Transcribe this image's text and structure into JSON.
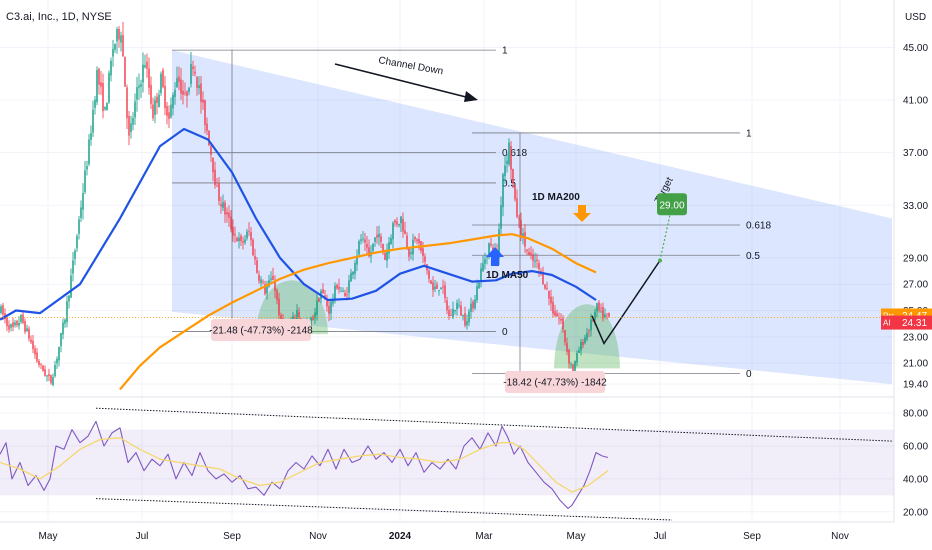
{
  "title": "C3.ai, Inc., 1D, NYSE",
  "currency": "USD",
  "chart_data": [
    {
      "type": "candlestick",
      "title": "C3.ai, Inc., 1D, NYSE",
      "ylabel": "USD",
      "ylim": [
        18.5,
        48.0
      ],
      "y_ticks": [
        "45.00",
        "41.00",
        "37.00",
        "33.00",
        "29.00",
        "27.00",
        "25.00",
        "23.00",
        "21.00",
        "19.40"
      ],
      "x_ticks": [
        "May",
        "Jul",
        "Sep",
        "Nov",
        "2024",
        "Mar",
        "May",
        "Jul",
        "Sep",
        "Nov"
      ],
      "price_labels": [
        {
          "tag": "Pre",
          "value": "24.47",
          "color": "#ff9800"
        },
        {
          "tag": "AI",
          "value": "24.31",
          "color": "#f23645"
        }
      ],
      "price_path": [
        [
          0,
          25
        ],
        [
          3,
          24
        ],
        [
          6,
          23.6
        ],
        [
          10,
          24.4
        ],
        [
          14,
          23
        ],
        [
          18,
          21.2
        ],
        [
          22,
          20.2
        ],
        [
          25,
          19.6
        ],
        [
          28,
          21.5
        ],
        [
          32,
          24.5
        ],
        [
          36,
          28.5
        ],
        [
          40,
          33
        ],
        [
          44,
          37.5
        ],
        [
          48,
          43
        ],
        [
          52,
          40
        ],
        [
          56,
          45
        ],
        [
          60,
          46.5
        ],
        [
          64,
          38
        ],
        [
          68,
          41.5
        ],
        [
          72,
          44
        ],
        [
          76,
          40
        ],
        [
          80,
          42.5
        ],
        [
          84,
          39.5
        ],
        [
          88,
          43
        ],
        [
          92,
          41
        ],
        [
          96,
          44
        ],
        [
          100,
          41
        ],
        [
          104,
          38
        ],
        [
          108,
          34
        ],
        [
          112,
          32.5
        ],
        [
          116,
          31
        ],
        [
          120,
          30
        ],
        [
          124,
          31
        ],
        [
          128,
          28
        ],
        [
          132,
          26.5
        ],
        [
          136,
          27.5
        ],
        [
          140,
          24
        ],
        [
          144,
          23.5
        ],
        [
          148,
          25
        ],
        [
          152,
          23.4
        ],
        [
          156,
          24.5
        ],
        [
          160,
          26.5
        ],
        [
          164,
          25
        ],
        [
          168,
          27
        ],
        [
          172,
          26
        ],
        [
          176,
          28.3
        ],
        [
          180,
          30.5
        ],
        [
          184,
          29
        ],
        [
          188,
          31
        ],
        [
          192,
          29
        ],
        [
          196,
          31.5
        ],
        [
          200,
          32
        ],
        [
          204,
          29.5
        ],
        [
          208,
          30.5
        ],
        [
          212,
          28.5
        ],
        [
          216,
          26.5
        ],
        [
          220,
          27
        ],
        [
          224,
          24.5
        ],
        [
          228,
          25.5
        ],
        [
          232,
          24.2
        ],
        [
          236,
          25.5
        ],
        [
          240,
          28
        ],
        [
          244,
          30
        ],
        [
          248,
          29
        ],
        [
          251,
          35.5
        ],
        [
          254,
          37.5
        ],
        [
          257,
          33
        ],
        [
          260,
          31
        ],
        [
          264,
          29
        ],
        [
          268,
          28.5
        ],
        [
          272,
          27
        ],
        [
          276,
          25
        ],
        [
          280,
          24.2
        ],
        [
          284,
          21.2
        ],
        [
          286,
          20.5
        ],
        [
          289,
          22
        ],
        [
          292,
          23
        ],
        [
          295,
          24
        ],
        [
          298,
          25.2
        ],
        [
          301,
          24.6
        ],
        [
          304,
          24.4
        ]
      ],
      "moving_averages": [
        {
          "name": "1D MA50",
          "color": "#1e53e5",
          "points": [
            [
              0,
              24.3
            ],
            [
              8,
              25
            ],
            [
              20,
              24.8
            ],
            [
              40,
              27
            ],
            [
              60,
              32
            ],
            [
              80,
              37.5
            ],
            [
              92,
              38.8
            ],
            [
              104,
              38
            ],
            [
              116,
              35.5
            ],
            [
              128,
              32
            ],
            [
              140,
              29
            ],
            [
              152,
              27
            ],
            [
              164,
              25.8
            ],
            [
              176,
              25.9
            ],
            [
              188,
              26.5
            ],
            [
              200,
              27.8
            ],
            [
              212,
              28.4
            ],
            [
              224,
              27.8
            ],
            [
              236,
              27.2
            ],
            [
              248,
              27.3
            ],
            [
              256,
              27.8
            ],
            [
              266,
              28
            ],
            [
              276,
              27.7
            ],
            [
              288,
              26.8
            ],
            [
              298,
              25.8
            ]
          ]
        },
        {
          "name": "1D MA200",
          "color": "#ff9800",
          "points": [
            [
              60,
              19
            ],
            [
              70,
              20.8
            ],
            [
              80,
              22.2
            ],
            [
              92,
              23.4
            ],
            [
              104,
              24.6
            ],
            [
              116,
              25.6
            ],
            [
              128,
              26.5
            ],
            [
              140,
              27.4
            ],
            [
              152,
              28.1
            ],
            [
              164,
              28.6
            ],
            [
              176,
              29
            ],
            [
              188,
              29.4
            ],
            [
              200,
              29.7
            ],
            [
              212,
              29.9
            ],
            [
              224,
              30.1
            ],
            [
              236,
              30.4
            ],
            [
              248,
              30.7
            ],
            [
              256,
              30.8
            ],
            [
              264,
              30.5
            ],
            [
              276,
              29.7
            ],
            [
              288,
              28.6
            ],
            [
              298,
              27.9
            ]
          ]
        }
      ],
      "channel": {
        "label": "Channel Down",
        "upper": [
          [
            86,
            44.8
          ],
          [
            446,
            32
          ]
        ],
        "lower": [
          [
            86,
            24.9
          ],
          [
            446,
            19.4
          ]
        ],
        "color": "#2962ff"
      },
      "fibonacci": [
        {
          "levels": [
            {
              "label": "1",
              "price": 44.8
            },
            {
              "label": "0.618",
              "price": 37
            },
            {
              "label": "0.5",
              "price": 34.7
            },
            {
              "label": "0",
              "price": 23.4
            }
          ],
          "x_range": [
            86,
            248
          ]
        },
        {
          "levels": [
            {
              "label": "1",
              "price": 38.5
            },
            {
              "label": "0.618",
              "price": 31.5
            },
            {
              "label": "0.5",
              "price": 29.2
            },
            {
              "label": "0",
              "price": 20.2
            }
          ],
          "x_range": [
            236,
            370
          ]
        }
      ],
      "measurements": [
        {
          "text": "-21.48 (-47.73%) -2148",
          "anchor": [
            115,
            24
          ]
        },
        {
          "text": "-18.42 (-47.73%) -1842",
          "anchor": [
            268,
            20
          ]
        }
      ],
      "projection": {
        "label": "Target",
        "target": "29.00",
        "points": [
          [
            296,
            24.6
          ],
          [
            302,
            22.5
          ],
          [
            330,
            28.8
          ],
          [
            336,
            33
          ]
        ]
      },
      "arrows": [
        {
          "label": "1D MA200",
          "direction": "down",
          "color": "#ff9800"
        },
        {
          "label": "1D MA50",
          "direction": "up",
          "color": "#2962ff"
        }
      ]
    },
    {
      "type": "line",
      "title": "",
      "ylim": [
        15,
        88
      ],
      "y_ticks": [
        "80.00",
        "60.00",
        "40.00",
        "20.00"
      ],
      "band": [
        30,
        70
      ],
      "series": [
        {
          "name": "",
          "color": "#7e57c2",
          "values": [
            [
              0,
              55
            ],
            [
              3,
              62
            ],
            [
              6,
              40
            ],
            [
              10,
              50
            ],
            [
              14,
              36
            ],
            [
              18,
              42
            ],
            [
              22,
              33
            ],
            [
              25,
              40
            ],
            [
              28,
              60
            ],
            [
              32,
              58
            ],
            [
              36,
              70
            ],
            [
              40,
              62
            ],
            [
              44,
              66
            ],
            [
              48,
              75
            ],
            [
              52,
              60
            ],
            [
              56,
              68
            ],
            [
              60,
              71
            ],
            [
              64,
              50
            ],
            [
              68,
              56
            ],
            [
              72,
              45
            ],
            [
              76,
              52
            ],
            [
              80,
              48
            ],
            [
              84,
              55
            ],
            [
              88,
              40
            ],
            [
              92,
              50
            ],
            [
              96,
              42
            ],
            [
              100,
              56
            ],
            [
              104,
              45
            ],
            [
              108,
              40
            ],
            [
              112,
              43
            ],
            [
              116,
              38
            ],
            [
              120,
              42
            ],
            [
              124,
              34
            ],
            [
              128,
              35
            ],
            [
              132,
              30
            ],
            [
              136,
              38
            ],
            [
              140,
              34
            ],
            [
              144,
              45
            ],
            [
              148,
              50
            ],
            [
              152,
              46
            ],
            [
              156,
              54
            ],
            [
              160,
              48
            ],
            [
              164,
              58
            ],
            [
              168,
              46
            ],
            [
              172,
              58
            ],
            [
              176,
              50
            ],
            [
              180,
              52
            ],
            [
              184,
              60
            ],
            [
              188,
              52
            ],
            [
              192,
              56
            ],
            [
              196,
              50
            ],
            [
              200,
              58
            ],
            [
              204,
              48
            ],
            [
              208,
              56
            ],
            [
              212,
              44
            ],
            [
              216,
              50
            ],
            [
              220,
              46
            ],
            [
              224,
              52
            ],
            [
              228,
              46
            ],
            [
              232,
              60
            ],
            [
              236,
              65
            ],
            [
              240,
              58
            ],
            [
              244,
              68
            ],
            [
              248,
              60
            ],
            [
              251,
              72
            ],
            [
              254,
              65
            ],
            [
              257,
              55
            ],
            [
              260,
              60
            ],
            [
              264,
              50
            ],
            [
              268,
              44
            ],
            [
              272,
              38
            ],
            [
              276,
              34
            ],
            [
              280,
              27
            ],
            [
              284,
              22
            ],
            [
              286,
              24
            ],
            [
              289,
              30
            ],
            [
              292,
              36
            ],
            [
              295,
              45
            ],
            [
              298,
              56
            ],
            [
              301,
              54
            ],
            [
              304,
              53
            ]
          ]
        },
        {
          "name": "",
          "color": "#f5d76e",
          "values": [
            [
              0,
              50
            ],
            [
              10,
              46
            ],
            [
              20,
              40
            ],
            [
              30,
              48
            ],
            [
              40,
              58
            ],
            [
              50,
              64
            ],
            [
              60,
              65
            ],
            [
              70,
              58
            ],
            [
              80,
              52
            ],
            [
              90,
              50
            ],
            [
              100,
              48
            ],
            [
              110,
              46
            ],
            [
              120,
              40
            ],
            [
              130,
              36
            ],
            [
              140,
              38
            ],
            [
              150,
              44
            ],
            [
              160,
              50
            ],
            [
              170,
              52
            ],
            [
              180,
              54
            ],
            [
              190,
              55
            ],
            [
              200,
              53
            ],
            [
              210,
              52
            ],
            [
              220,
              50
            ],
            [
              230,
              52
            ],
            [
              240,
              58
            ],
            [
              250,
              62
            ],
            [
              256,
              62
            ],
            [
              262,
              58
            ],
            [
              270,
              48
            ],
            [
              278,
              38
            ],
            [
              286,
              32
            ],
            [
              294,
              36
            ],
            [
              304,
              45
            ]
          ]
        }
      ],
      "trendlines": [
        {
          "points": [
            [
              48,
              83
            ],
            [
              446,
              63
            ]
          ]
        },
        {
          "points": [
            [
              48,
              28
            ],
            [
              336,
              15
            ]
          ]
        }
      ]
    }
  ]
}
